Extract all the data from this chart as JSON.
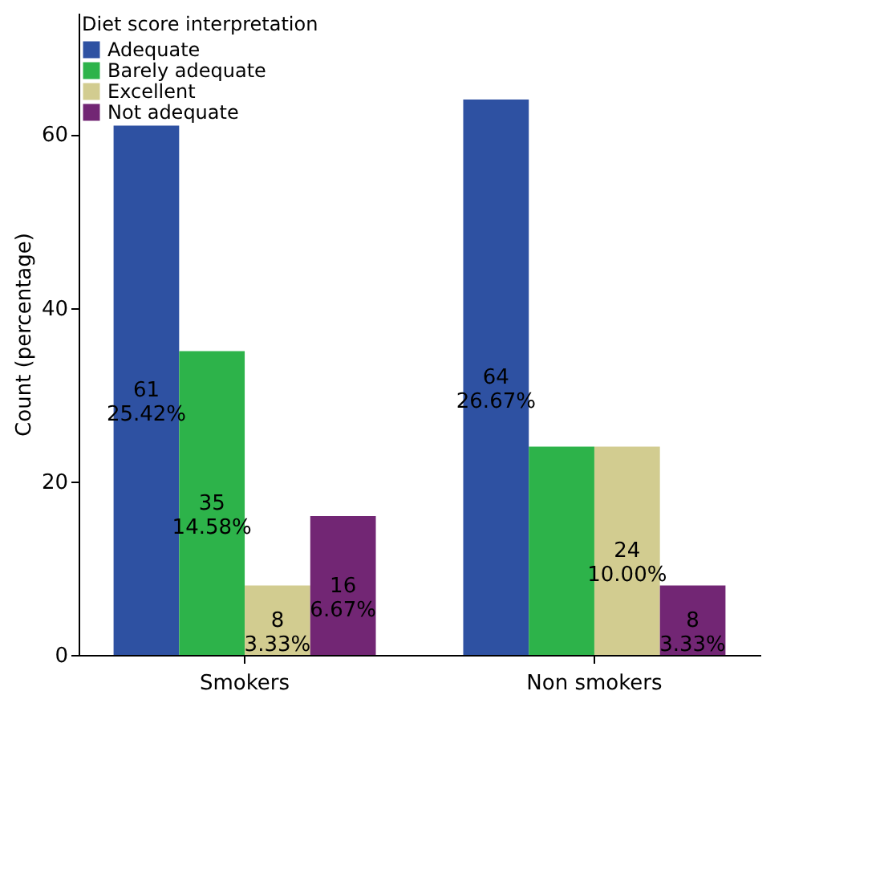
{
  "chart_data": {
    "type": "bar",
    "xlabel": null,
    "ylabel": "Count (percentage)",
    "legend_title": "Diet score interpretation",
    "categories": [
      "Smokers",
      "Non smokers"
    ],
    "series": [
      {
        "name": "Adequate",
        "color": "#2e51a2",
        "values": [
          61,
          64
        ],
        "value_labels": [
          "61\n25.42%",
          "64\n26.67%"
        ]
      },
      {
        "name": "Barely adequate",
        "color": "#2db34a",
        "values": [
          35,
          24
        ],
        "value_labels": [
          "35\n14.58%",
          null
        ]
      },
      {
        "name": "Excellent",
        "color": "#d2cc90",
        "values": [
          8,
          24
        ],
        "value_labels": [
          "8\n3.33%",
          "24\n10.00%"
        ]
      },
      {
        "name": "Not adequate",
        "color": "#722674",
        "values": [
          16,
          8
        ],
        "value_labels": [
          "16\n6.67%",
          "8\n3.33%"
        ]
      }
    ],
    "ylim": [
      0,
      74
    ],
    "yticks": [
      0,
      20,
      40,
      60
    ],
    "grid": false,
    "legend": "top left"
  }
}
